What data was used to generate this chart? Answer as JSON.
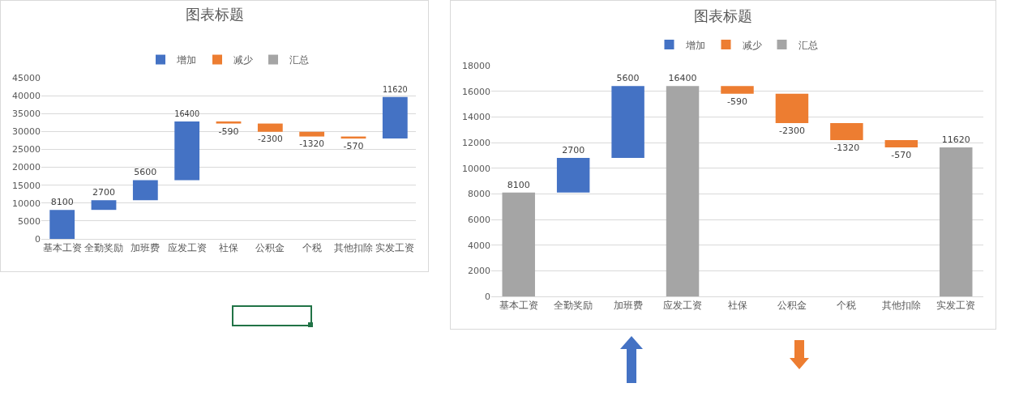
{
  "chart_data": [
    {
      "type": "bar",
      "title": "图表标题",
      "categories": [
        "基本工资",
        "全勤奖励",
        "加班费",
        "应发工资",
        "社保",
        "公积金",
        "个税",
        "其他扣除",
        "实发工资"
      ],
      "series": [
        {
          "name": "增加",
          "color": "#4472c4",
          "values": [
            8100,
            2700,
            5600,
            16400,
            null,
            null,
            null,
            null,
            11620
          ],
          "base": [
            0,
            8100,
            10800,
            16400,
            null,
            null,
            null,
            null,
            28020
          ]
        },
        {
          "name": "减少",
          "color": "#ed7d31",
          "values": [
            null,
            null,
            null,
            null,
            -590,
            -2300,
            -1320,
            -570,
            null
          ],
          "base": [
            null,
            null,
            null,
            null,
            32800,
            32210,
            29910,
            28590,
            null
          ]
        },
        {
          "name": "汇总",
          "color": "#a5a5a5",
          "values": [
            null,
            null,
            null,
            null,
            null,
            null,
            null,
            null,
            null
          ]
        }
      ],
      "ylim": [
        0,
        45000
      ],
      "yticks": [
        0,
        5000,
        10000,
        15000,
        20000,
        25000,
        30000,
        35000,
        40000,
        45000
      ],
      "grid": "y",
      "legend": "top",
      "data_labels": true
    },
    {
      "type": "bar",
      "title": "图表标题",
      "categories": [
        "基本工资",
        "全勤奖励",
        "加班费",
        "应发工资",
        "社保",
        "公积金",
        "个税",
        "其他扣除",
        "实发工资"
      ],
      "series": [
        {
          "name": "增加",
          "color": "#4472c4",
          "values": [
            null,
            2700,
            5600,
            null,
            null,
            null,
            null,
            null,
            null
          ],
          "base": [
            null,
            8100,
            10800,
            null,
            null,
            null,
            null,
            null,
            null
          ]
        },
        {
          "name": "减少",
          "color": "#ed7d31",
          "values": [
            null,
            null,
            null,
            null,
            -590,
            -2300,
            -1320,
            -570,
            null
          ],
          "base": [
            null,
            null,
            null,
            null,
            16400,
            15810,
            13510,
            12190,
            null
          ]
        },
        {
          "name": "汇总",
          "color": "#a5a5a5",
          "values": [
            8100,
            null,
            null,
            16400,
            null,
            null,
            null,
            null,
            11620
          ]
        }
      ],
      "ylim": [
        0,
        18000
      ],
      "yticks": [
        0,
        2000,
        4000,
        6000,
        8000,
        10000,
        12000,
        14000,
        16000,
        18000
      ],
      "grid": "y",
      "legend": "top",
      "data_labels": true
    }
  ]
}
